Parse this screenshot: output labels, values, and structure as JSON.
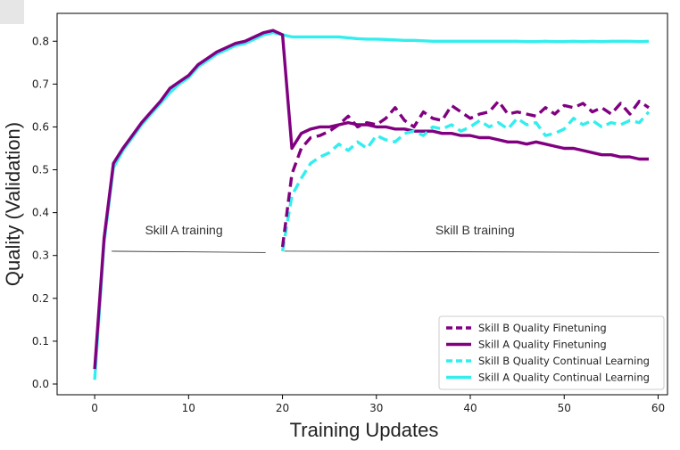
{
  "chart_data": {
    "type": "line",
    "title": "",
    "xlabel": "Training Updates",
    "ylabel": "Quality (Validation)",
    "xlim": [
      -4,
      61
    ],
    "ylim": [
      -0.025,
      0.865
    ],
    "xticks": [
      0,
      10,
      20,
      30,
      40,
      50,
      60
    ],
    "yticks": [
      0.0,
      0.1,
      0.2,
      0.3,
      0.4,
      0.5,
      0.6,
      0.7,
      0.8
    ],
    "grid": false,
    "legend_position": "lower-right",
    "annotations": [
      {
        "text": "Skill A training",
        "x": 9.5,
        "y": 0.345,
        "line_x": [
          1.8,
          18.2
        ],
        "line_y": 0.31
      },
      {
        "text": "Skill B training",
        "x": 40.5,
        "y": 0.345,
        "line_x": [
          20.2,
          60.1
        ],
        "line_y": 0.31
      }
    ],
    "series": [
      {
        "name": "Skill B Quality Finetuning",
        "color": "#800080",
        "style": "dashed",
        "x": [
          20,
          21,
          22,
          23,
          24,
          25,
          26,
          27,
          28,
          29,
          30,
          31,
          32,
          33,
          34,
          35,
          36,
          37,
          38,
          39,
          40,
          41,
          42,
          43,
          44,
          45,
          46,
          47,
          48,
          49,
          50,
          51,
          52,
          53,
          54,
          55,
          56,
          57,
          58,
          59
        ],
        "y": [
          0.32,
          0.49,
          0.55,
          0.575,
          0.58,
          0.59,
          0.605,
          0.625,
          0.6,
          0.61,
          0.605,
          0.62,
          0.645,
          0.615,
          0.6,
          0.635,
          0.62,
          0.615,
          0.65,
          0.635,
          0.62,
          0.63,
          0.635,
          0.66,
          0.63,
          0.635,
          0.63,
          0.625,
          0.645,
          0.63,
          0.65,
          0.645,
          0.655,
          0.635,
          0.645,
          0.63,
          0.655,
          0.63,
          0.66,
          0.645
        ]
      },
      {
        "name": "Skill A Quality Finetuning",
        "color": "#800080",
        "style": "solid",
        "x": [
          0,
          1,
          2,
          3,
          4,
          5,
          6,
          7,
          8,
          9,
          10,
          11,
          12,
          13,
          14,
          15,
          16,
          17,
          18,
          19,
          20,
          21,
          22,
          23,
          24,
          25,
          26,
          27,
          28,
          29,
          30,
          31,
          32,
          33,
          34,
          35,
          36,
          37,
          38,
          39,
          40,
          41,
          42,
          43,
          44,
          45,
          46,
          47,
          48,
          49,
          50,
          51,
          52,
          53,
          54,
          55,
          56,
          57,
          58,
          59
        ],
        "y": [
          0.035,
          0.34,
          0.515,
          0.55,
          0.58,
          0.61,
          0.635,
          0.66,
          0.69,
          0.705,
          0.72,
          0.745,
          0.76,
          0.775,
          0.785,
          0.795,
          0.8,
          0.81,
          0.82,
          0.825,
          0.815,
          0.55,
          0.585,
          0.595,
          0.6,
          0.6,
          0.605,
          0.61,
          0.605,
          0.605,
          0.6,
          0.6,
          0.595,
          0.595,
          0.59,
          0.59,
          0.59,
          0.585,
          0.585,
          0.58,
          0.58,
          0.575,
          0.575,
          0.57,
          0.565,
          0.565,
          0.56,
          0.565,
          0.56,
          0.555,
          0.55,
          0.55,
          0.545,
          0.54,
          0.535,
          0.535,
          0.53,
          0.53,
          0.525,
          0.525
        ]
      },
      {
        "name": "Skill B Quality Continual Learning",
        "color": "#33eeee",
        "style": "dashed",
        "x": [
          20,
          21,
          22,
          23,
          24,
          25,
          26,
          27,
          28,
          29,
          30,
          31,
          32,
          33,
          34,
          35,
          36,
          37,
          38,
          39,
          40,
          41,
          42,
          43,
          44,
          45,
          46,
          47,
          48,
          49,
          50,
          51,
          52,
          53,
          54,
          55,
          56,
          57,
          58,
          59
        ],
        "y": [
          0.31,
          0.44,
          0.48,
          0.515,
          0.53,
          0.54,
          0.56,
          0.545,
          0.565,
          0.55,
          0.58,
          0.57,
          0.565,
          0.585,
          0.59,
          0.58,
          0.6,
          0.595,
          0.605,
          0.59,
          0.6,
          0.615,
          0.6,
          0.61,
          0.595,
          0.62,
          0.605,
          0.61,
          0.58,
          0.585,
          0.595,
          0.62,
          0.605,
          0.615,
          0.6,
          0.61,
          0.605,
          0.615,
          0.61,
          0.635
        ]
      },
      {
        "name": "Skill A Quality Continual Learning",
        "color": "#33eeee",
        "style": "solid",
        "x": [
          0,
          1,
          2,
          3,
          4,
          5,
          6,
          7,
          8,
          9,
          10,
          11,
          12,
          13,
          14,
          15,
          16,
          17,
          18,
          19,
          20,
          21,
          22,
          23,
          24,
          25,
          26,
          27,
          28,
          29,
          30,
          31,
          32,
          33,
          34,
          35,
          36,
          37,
          38,
          39,
          40,
          41,
          42,
          43,
          44,
          45,
          46,
          47,
          48,
          49,
          50,
          51,
          52,
          53,
          54,
          55,
          56,
          57,
          58,
          59
        ],
        "y": [
          0.01,
          0.33,
          0.505,
          0.545,
          0.575,
          0.605,
          0.63,
          0.655,
          0.68,
          0.7,
          0.715,
          0.74,
          0.755,
          0.77,
          0.78,
          0.79,
          0.795,
          0.805,
          0.815,
          0.82,
          0.815,
          0.81,
          0.81,
          0.81,
          0.81,
          0.81,
          0.81,
          0.808,
          0.806,
          0.805,
          0.805,
          0.804,
          0.803,
          0.802,
          0.802,
          0.801,
          0.8,
          0.8,
          0.8,
          0.8,
          0.8,
          0.8,
          0.8,
          0.8,
          0.8,
          0.8,
          0.799,
          0.799,
          0.8,
          0.799,
          0.799,
          0.8,
          0.799,
          0.8,
          0.799,
          0.8,
          0.8,
          0.8,
          0.799,
          0.8
        ]
      }
    ]
  }
}
